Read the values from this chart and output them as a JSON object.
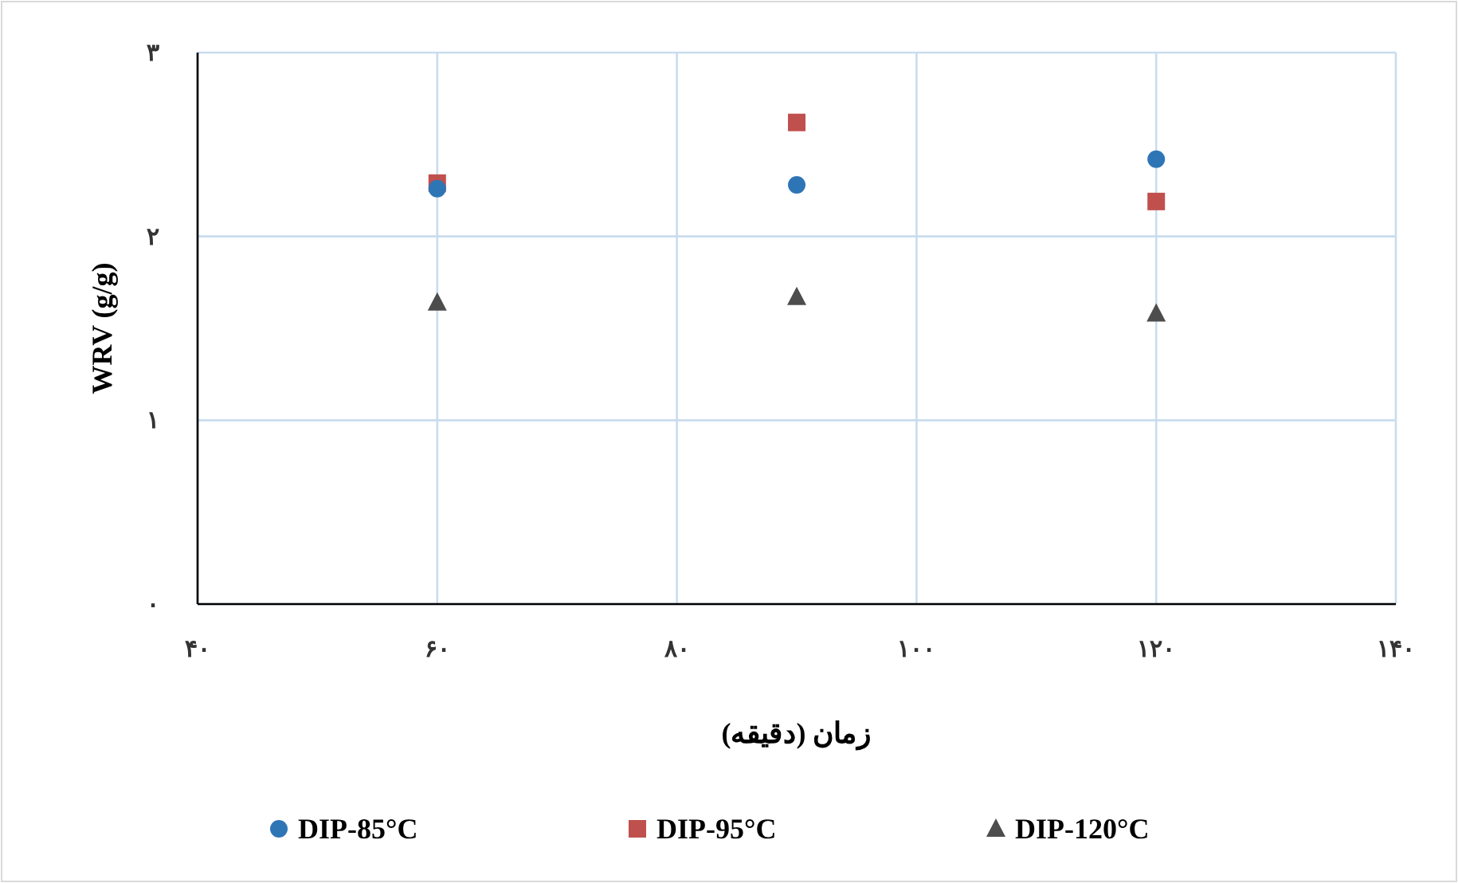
{
  "chart_data": {
    "type": "scatter",
    "xlabel": "زمان (دقیقه)",
    "ylabel": "WRV (g/g)",
    "xlim": [
      40,
      140
    ],
    "ylim": [
      0,
      3
    ],
    "xticks": [
      {
        "value": 40,
        "label": "۴۰"
      },
      {
        "value": 60,
        "label": "۶۰"
      },
      {
        "value": 80,
        "label": "۸۰"
      },
      {
        "value": 100,
        "label": "۱۰۰"
      },
      {
        "value": 120,
        "label": "۱۲۰"
      },
      {
        "value": 140,
        "label": "۱۴۰"
      }
    ],
    "yticks": [
      {
        "value": 0,
        "label": "٠"
      },
      {
        "value": 1,
        "label": "١"
      },
      {
        "value": 2,
        "label": "٢"
      },
      {
        "value": 3,
        "label": "٣"
      }
    ],
    "grid": true,
    "legend": "bottom",
    "series": [
      {
        "name": "DIP-85°C",
        "color": "#2e75b6",
        "marker": "circle",
        "x": [
          60,
          90,
          120
        ],
        "values": [
          2.26,
          2.28,
          2.42
        ]
      },
      {
        "name": "DIP-95°C",
        "color": "#c0504d",
        "marker": "square",
        "x": [
          60,
          90,
          120
        ],
        "values": [
          2.29,
          2.62,
          2.19
        ]
      },
      {
        "name": "DIP-120°C",
        "color": "#4d4d4d",
        "marker": "triangle",
        "x": [
          60,
          90,
          120
        ],
        "values": [
          1.64,
          1.67,
          1.58
        ]
      }
    ]
  }
}
